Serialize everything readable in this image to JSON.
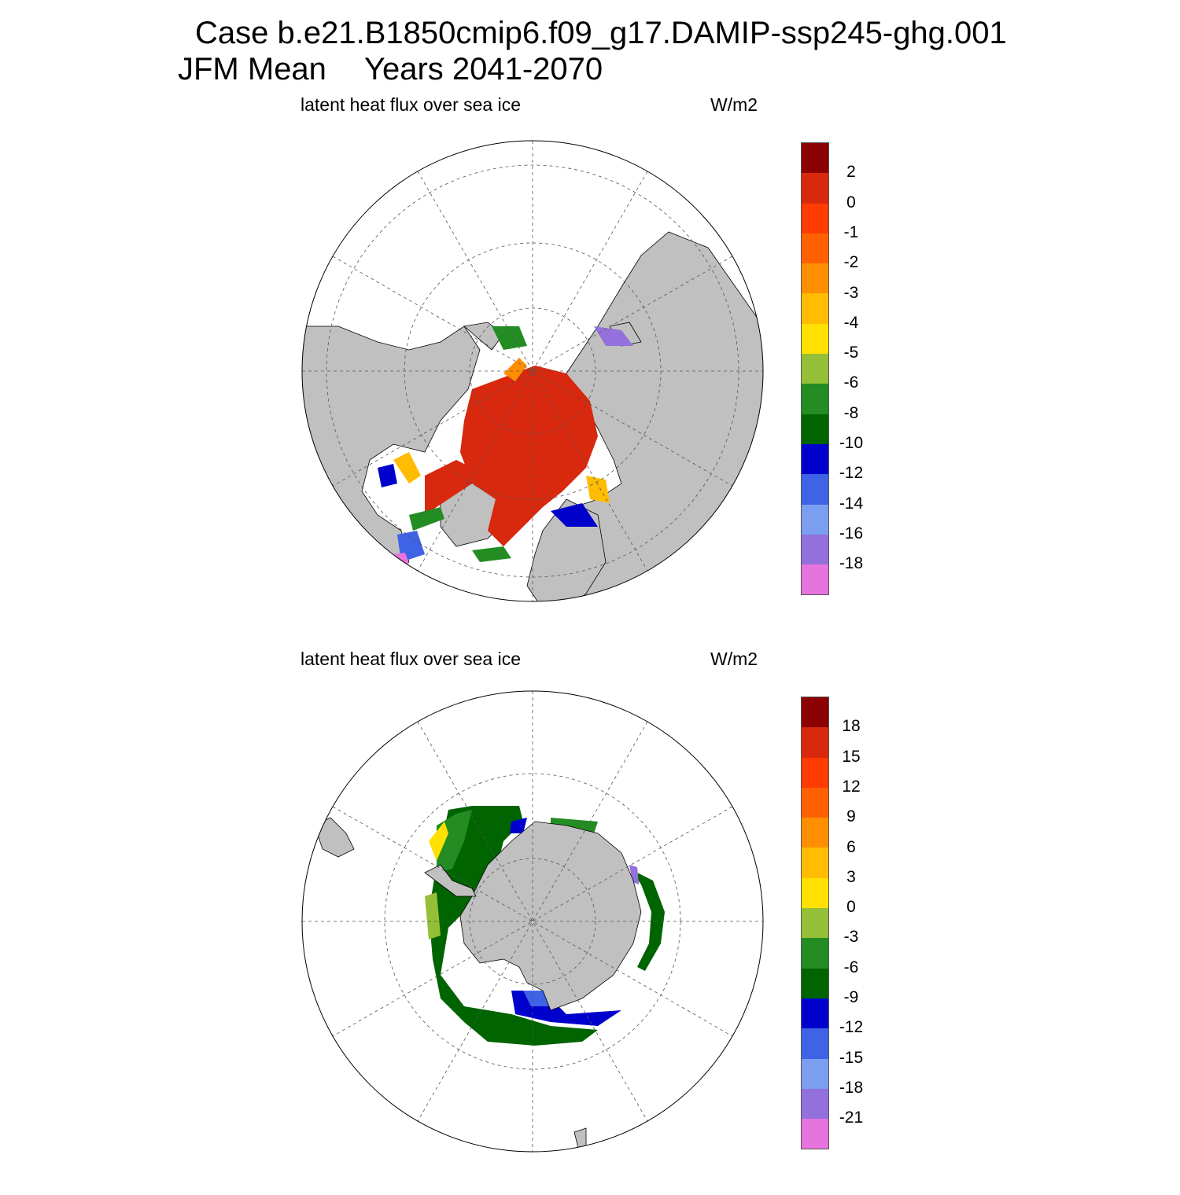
{
  "figure": {
    "title_line1": "Case b.e21.B1850cmip6.f09_g17.DAMIP-ssp245-ghg.001",
    "title_season": "JFM Mean",
    "title_years": "Years 2041-2070"
  },
  "panels": [
    {
      "hemisphere": "north",
      "variable_label": "latent heat flux over sea ice",
      "units": "W/m2",
      "colorbar": {
        "labels": [
          "2",
          "0",
          "-1",
          "-2",
          "-3",
          "-4",
          "-5",
          "-6",
          "-8",
          "-10",
          "-12",
          "-14",
          "-16",
          "-18"
        ],
        "colors": [
          "#8b0000",
          "#d8280e",
          "#ff3b00",
          "#ff6100",
          "#ff8f00",
          "#ffbc00",
          "#ffe000",
          "#95bf37",
          "#238c23",
          "#006400",
          "#0000cd",
          "#3e63e4",
          "#7b9ef0",
          "#9370db",
          "#e673de"
        ]
      }
    },
    {
      "hemisphere": "south",
      "variable_label": "latent heat flux over sea ice",
      "units": "W/m2",
      "colorbar": {
        "labels": [
          "18",
          "15",
          "12",
          "9",
          "6",
          "3",
          "0",
          "-3",
          "-6",
          "-9",
          "-12",
          "-15",
          "-18",
          "-21"
        ],
        "colors": [
          "#8b0000",
          "#d8280e",
          "#ff3b00",
          "#ff6100",
          "#ff8f00",
          "#ffbc00",
          "#ffe000",
          "#95bf37",
          "#238c23",
          "#006400",
          "#0000cd",
          "#3e63e4",
          "#7b9ef0",
          "#9370db",
          "#e673de"
        ]
      }
    }
  ],
  "style": {
    "land": "#c0c0c0",
    "ocean": "#ffffff",
    "grid": "#555555"
  }
}
